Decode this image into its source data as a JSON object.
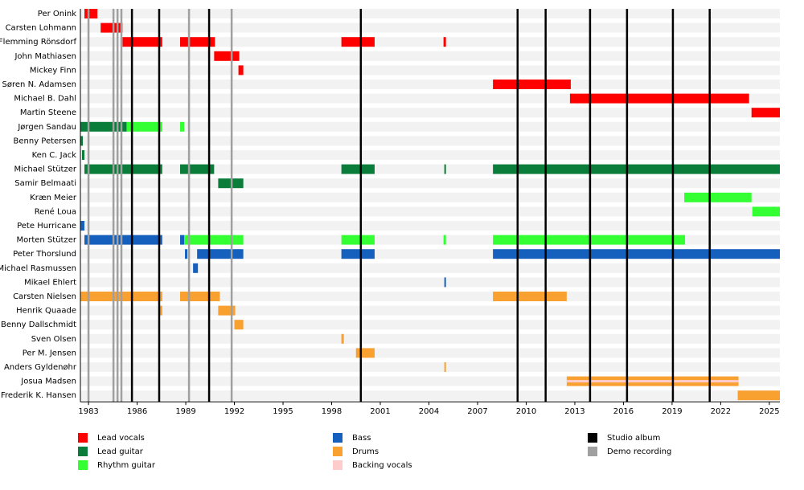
{
  "chart_data": {
    "type": "timeline",
    "xlim": [
      1982.5,
      2025.65
    ],
    "xticks": [
      1983,
      1986,
      1989,
      1992,
      1995,
      1998,
      2001,
      2004,
      2007,
      2010,
      2013,
      2016,
      2019,
      2022,
      2025
    ],
    "roles": [
      {
        "name": "Lead vocals",
        "color": "#ff0000"
      },
      {
        "name": "Lead guitar",
        "color": "#0a7d3a"
      },
      {
        "name": "Rhythm guitar",
        "color": "#33ff33"
      },
      {
        "name": "Bass",
        "color": "#1560bd"
      },
      {
        "name": "Drums",
        "color": "#f8a030"
      },
      {
        "name": "Backing vocals",
        "color": "#ffcccc"
      }
    ],
    "events": [
      {
        "name": "Studio album",
        "color": "#000000",
        "dates": [
          1985.68,
          1987.36,
          1990.44,
          1999.8,
          2009.47,
          2011.2,
          2013.94,
          2016.22,
          2019.05,
          2021.32
        ]
      },
      {
        "name": "Demo recording",
        "color": "#a0a0a0",
        "dates": [
          1983.0,
          1984.54,
          1984.79,
          1985.03,
          1989.2,
          1991.83
        ]
      }
    ],
    "members": [
      {
        "name": "Per Onink",
        "periods": [
          {
            "role": "Lead vocals",
            "start": 1982.75,
            "end": 1983.55
          }
        ]
      },
      {
        "name": "Carsten Lohmann",
        "periods": [
          {
            "role": "Lead vocals",
            "start": 1983.75,
            "end": 1985.1
          }
        ]
      },
      {
        "name": "Flemming Rönsdorf",
        "periods": [
          {
            "role": "Lead vocals",
            "start": 1985.1,
            "end": 1987.55
          },
          {
            "role": "Lead vocals",
            "start": 1988.65,
            "end": 1990.8
          },
          {
            "role": "Lead vocals",
            "start": 1998.6,
            "end": 2000.65
          },
          {
            "role": "Lead vocals",
            "start": 2004.9,
            "end": 2005.05
          }
        ]
      },
      {
        "name": "John Mathiasen",
        "periods": [
          {
            "role": "Lead vocals",
            "start": 1990.75,
            "end": 1992.3
          }
        ]
      },
      {
        "name": "Mickey Finn",
        "periods": [
          {
            "role": "Lead vocals",
            "start": 1992.25,
            "end": 1992.55
          }
        ]
      },
      {
        "name": "Søren N. Adamsen",
        "periods": [
          {
            "role": "Lead vocals",
            "start": 2007.95,
            "end": 2012.75
          }
        ]
      },
      {
        "name": "Michael B. Dahl",
        "periods": [
          {
            "role": "Lead vocals",
            "start": 2012.7,
            "end": 2023.75
          }
        ]
      },
      {
        "name": "Martin Steene",
        "periods": [
          {
            "role": "Lead vocals",
            "start": 2023.9,
            "end": 2025.65
          }
        ]
      },
      {
        "name": "Jørgen Sandau",
        "periods": [
          {
            "role": "Lead guitar",
            "start": 1982.5,
            "end": 1985.35
          },
          {
            "role": "Rhythm guitar",
            "start": 1985.35,
            "end": 1987.55
          },
          {
            "role": "Rhythm guitar",
            "start": 1988.65,
            "end": 1988.9
          }
        ]
      },
      {
        "name": "Benny Petersen",
        "periods": [
          {
            "role": "Lead guitar",
            "start": 1982.5,
            "end": 1982.65
          }
        ]
      },
      {
        "name": "Ken C. Jack",
        "periods": [
          {
            "role": "Lead guitar",
            "start": 1982.6,
            "end": 1982.75
          }
        ]
      },
      {
        "name": "Michael Stützer",
        "periods": [
          {
            "role": "Lead guitar",
            "start": 1982.75,
            "end": 1987.55
          },
          {
            "role": "Lead guitar",
            "start": 1988.65,
            "end": 1990.75
          },
          {
            "role": "Lead guitar",
            "start": 1998.6,
            "end": 2000.65
          },
          {
            "role": "Lead guitar",
            "start": 2004.95,
            "end": 2005.05
          },
          {
            "role": "Lead guitar",
            "start": 2007.95,
            "end": 2025.65
          }
        ]
      },
      {
        "name": "Samir Belmaati",
        "periods": [
          {
            "role": "Lead guitar",
            "start": 1991.0,
            "end": 1992.55
          }
        ]
      },
      {
        "name": "Kræn Meier",
        "periods": [
          {
            "role": "Rhythm guitar",
            "start": 2019.75,
            "end": 2023.9
          }
        ]
      },
      {
        "name": "René Loua",
        "periods": [
          {
            "role": "Rhythm guitar",
            "start": 2023.95,
            "end": 2025.65
          }
        ]
      },
      {
        "name": "Pete Hurricane",
        "periods": [
          {
            "role": "Bass",
            "start": 1982.5,
            "end": 1982.75
          }
        ]
      },
      {
        "name": "Morten Stützer",
        "periods": [
          {
            "role": "Bass",
            "start": 1982.75,
            "end": 1987.55
          },
          {
            "role": "Bass",
            "start": 1988.65,
            "end": 1988.9
          },
          {
            "role": "Rhythm guitar",
            "start": 1988.9,
            "end": 1992.55
          },
          {
            "role": "Rhythm guitar",
            "start": 1998.6,
            "end": 2000.65
          },
          {
            "role": "Rhythm guitar",
            "start": 2004.9,
            "end": 2005.05
          },
          {
            "role": "Rhythm guitar",
            "start": 2007.95,
            "end": 2019.8
          }
        ]
      },
      {
        "name": "Peter Thorslund",
        "periods": [
          {
            "role": "Bass",
            "start": 1988.95,
            "end": 1989.1
          },
          {
            "role": "Bass",
            "start": 1989.7,
            "end": 1992.55
          },
          {
            "role": "Bass",
            "start": 1998.6,
            "end": 2000.65
          },
          {
            "role": "Bass",
            "start": 2007.95,
            "end": 2025.65
          }
        ]
      },
      {
        "name": "Michael Rasmussen",
        "periods": [
          {
            "role": "Bass",
            "start": 1989.45,
            "end": 1989.75
          }
        ]
      },
      {
        "name": "Mikael Ehlert",
        "periods": [
          {
            "role": "Bass",
            "start": 2004.95,
            "end": 2005.05
          }
        ]
      },
      {
        "name": "Carsten Nielsen",
        "periods": [
          {
            "role": "Drums",
            "start": 1982.5,
            "end": 1987.55
          },
          {
            "role": "Drums",
            "start": 1988.65,
            "end": 1991.1
          },
          {
            "role": "Drums",
            "start": 2007.95,
            "end": 2012.5
          }
        ]
      },
      {
        "name": "Henrik Quaade",
        "periods": [
          {
            "role": "Drums",
            "start": 1987.4,
            "end": 1987.55
          },
          {
            "role": "Drums",
            "start": 1991.0,
            "end": 1992.05
          }
        ]
      },
      {
        "name": "Benny Dallschmidt",
        "periods": [
          {
            "role": "Drums",
            "start": 1992.0,
            "end": 1992.55
          }
        ]
      },
      {
        "name": "Sven Olsen",
        "periods": [
          {
            "role": "Drums",
            "start": 1998.6,
            "end": 1998.75
          }
        ]
      },
      {
        "name": "Per M. Jensen",
        "periods": [
          {
            "role": "Drums",
            "start": 1999.5,
            "end": 2000.65
          }
        ]
      },
      {
        "name": "Anders Gyldenøhr",
        "periods": [
          {
            "role": "Drums",
            "start": 2004.95,
            "end": 2005.05
          }
        ]
      },
      {
        "name": "Josua Madsen",
        "periods": [
          {
            "role": "Drums",
            "start": 2012.5,
            "end": 2023.1
          },
          {
            "role": "Backing vocals",
            "start": 2012.5,
            "end": 2023.1
          }
        ]
      },
      {
        "name": "Frederik K. Hansen",
        "periods": [
          {
            "role": "Drums",
            "start": 2023.05,
            "end": 2025.65
          }
        ]
      }
    ]
  }
}
